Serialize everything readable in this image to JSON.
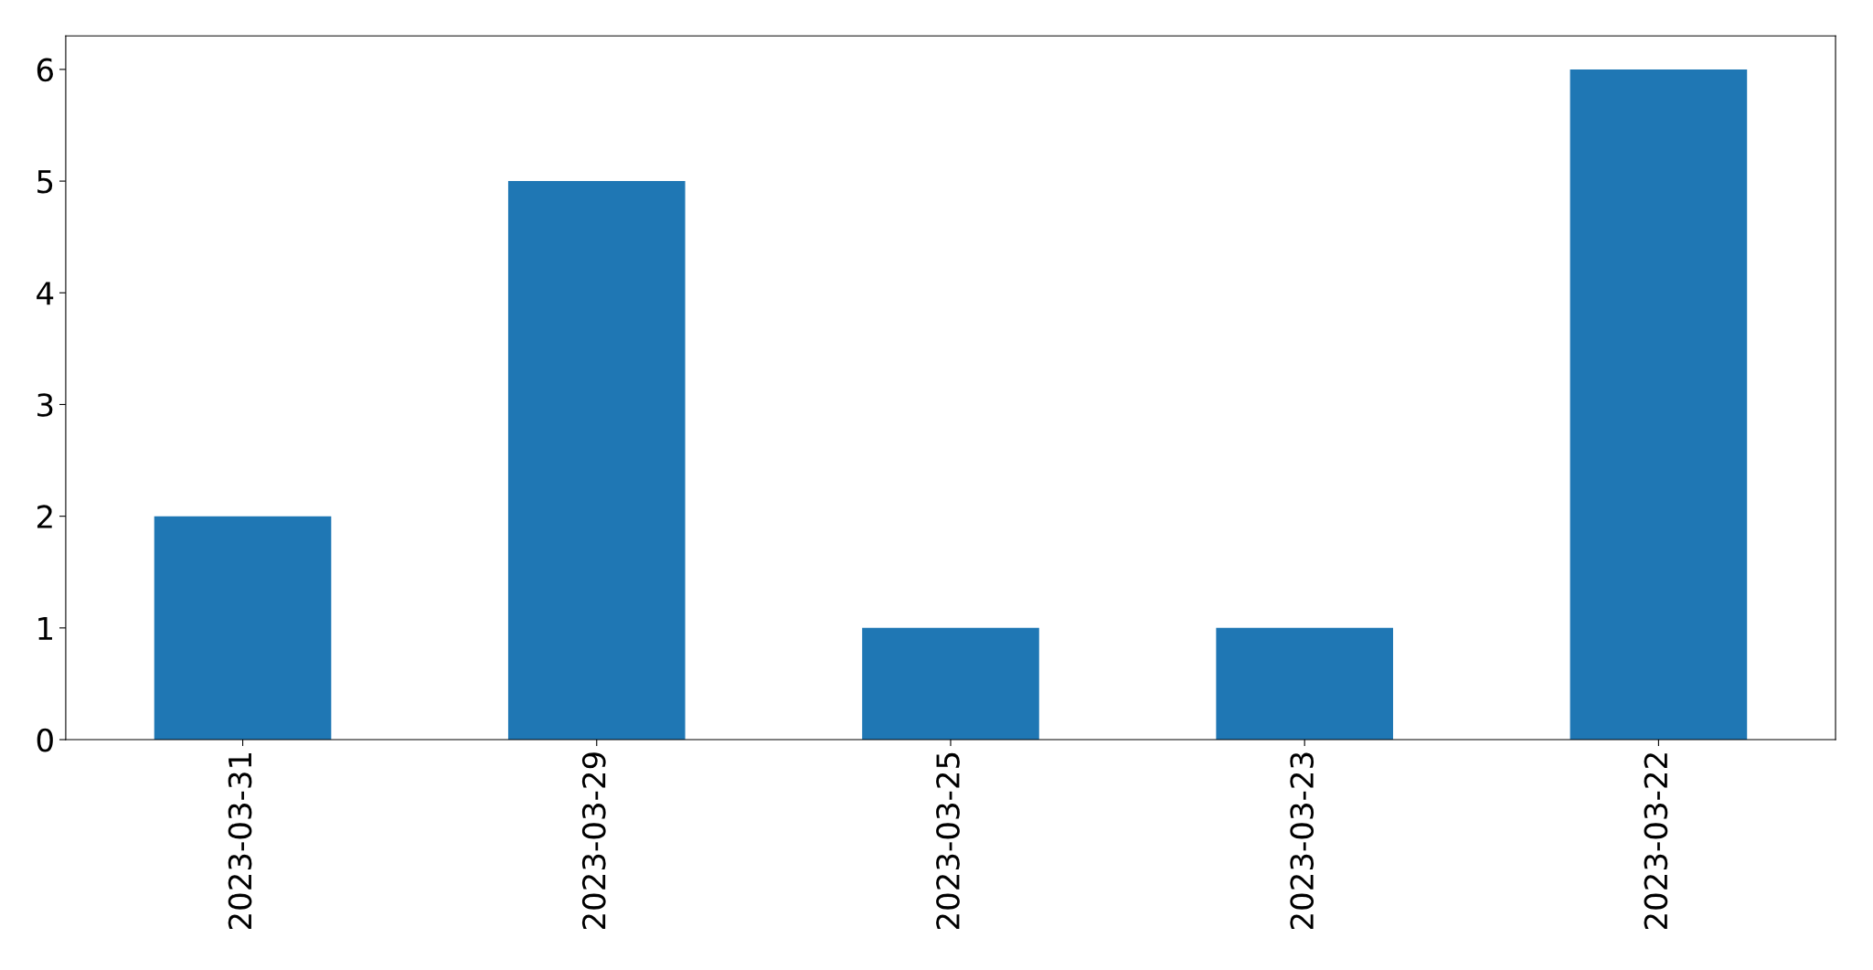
{
  "chart_data": {
    "type": "bar",
    "categories": [
      "2023-03-31",
      "2023-03-29",
      "2023-03-25",
      "2023-03-23",
      "2023-03-22"
    ],
    "values": [
      2,
      5,
      1,
      1,
      6
    ],
    "color": "#1f77b4",
    "ylim": [
      0,
      6.3
    ],
    "yticks": [
      0,
      1,
      2,
      3,
      4,
      5,
      6
    ],
    "grid": false,
    "legend": false
  }
}
